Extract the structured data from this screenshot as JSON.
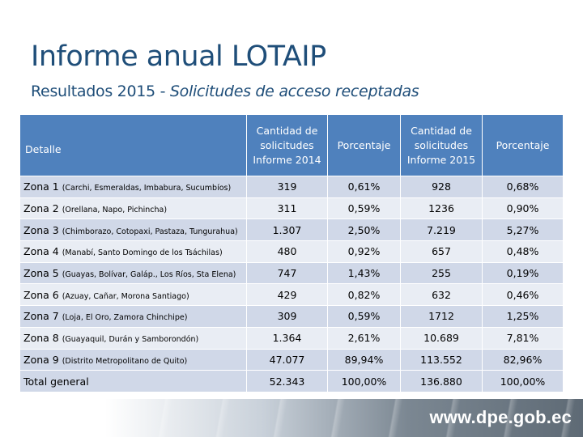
{
  "title": "Informe anual LOTAIP",
  "subtitle_main": "Resultados 2015 - ",
  "subtitle_italic": "Solicitudes de acceso receptadas",
  "table": {
    "headers": [
      "Detalle",
      "Cantidad de solicitudes Informe 2014",
      "Porcentaje",
      "Cantidad de solicitudes Informe 2015",
      "Porcentaje"
    ],
    "rows": [
      {
        "zone": "Zona 1",
        "detail": "(Carchi, Esmeraldas, Imbabura, Sucumbíos)",
        "c2014": "319",
        "p2014": "0,61%",
        "c2015": "928",
        "p2015": "0,68%"
      },
      {
        "zone": "Zona 2",
        "detail": "(Orellana, Napo, Pichincha)",
        "c2014": "311",
        "p2014": "0,59%",
        "c2015": "1236",
        "p2015": "0,90%"
      },
      {
        "zone": "Zona 3",
        "detail": "(Chimborazo, Cotopaxi, Pastaza, Tungurahua)",
        "c2014": "1.307",
        "p2014": "2,50%",
        "c2015": "7.219",
        "p2015": "5,27%"
      },
      {
        "zone": "Zona 4",
        "detail": "(Manabí, Santo Domingo de los Tsáchilas)",
        "c2014": "480",
        "p2014": "0,92%",
        "c2015": "657",
        "p2015": "0,48%"
      },
      {
        "zone": "Zona 5",
        "detail": "(Guayas, Bolívar, Galáp., Los Ríos, Sta Elena)",
        "c2014": "747",
        "p2014": "1,43%",
        "c2015": "255",
        "p2015": "0,19%"
      },
      {
        "zone": "Zona 6",
        "detail": "(Azuay, Cañar, Morona Santiago)",
        "c2014": "429",
        "p2014": "0,82%",
        "c2015": "632",
        "p2015": "0,46%"
      },
      {
        "zone": "Zona 7",
        "detail": "(Loja, El Oro, Zamora Chinchipe)",
        "c2014": "309",
        "p2014": "0,59%",
        "c2015": "1712",
        "p2015": "1,25%"
      },
      {
        "zone": "Zona 8",
        "detail": "(Guayaquil, Durán y Samborondón)",
        "c2014": "1.364",
        "p2014": "2,61%",
        "c2015": "10.689",
        "p2015": "7,81%"
      },
      {
        "zone": "Zona 9",
        "detail": "(Distrito Metropolitano de Quito)",
        "c2014": "47.077",
        "p2014": "89,94%",
        "c2015": "113.552",
        "p2015": "82,96%"
      }
    ],
    "total": {
      "label": "Total general",
      "c2014": "52.343",
      "p2014": "100,00%",
      "c2015": "136.880",
      "p2015": "100,00%"
    }
  },
  "footer_url": "www.dpe.gob.ec",
  "colors": {
    "title": "#1f4e79",
    "header_bg": "#4f81bd",
    "row_dark": "#d0d8e8",
    "row_light": "#e9edf4"
  }
}
